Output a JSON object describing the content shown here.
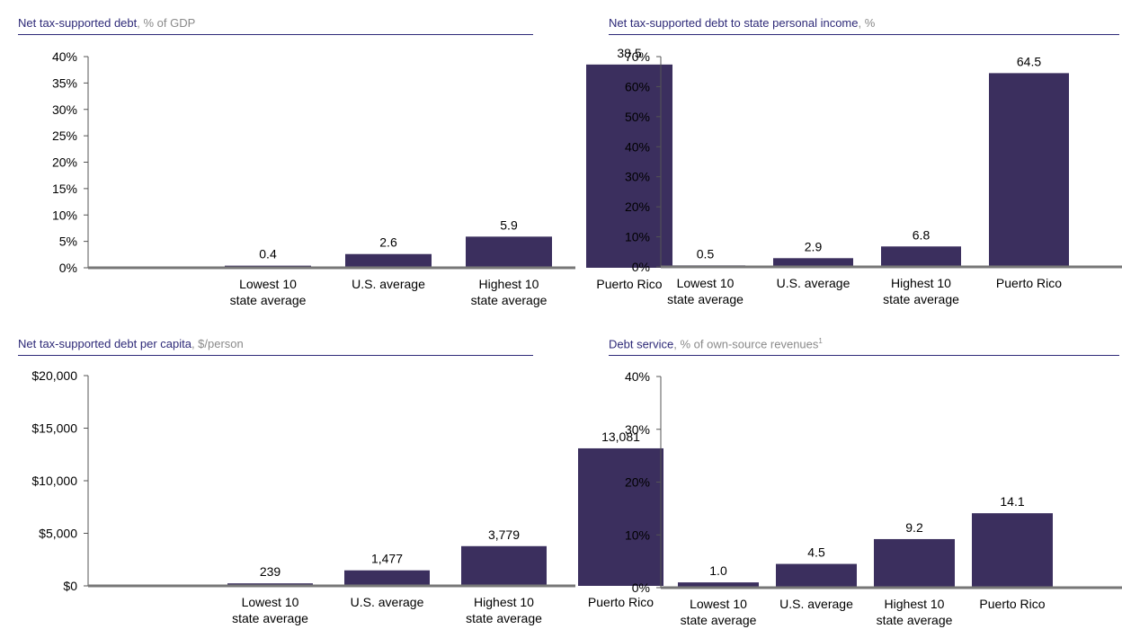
{
  "chart_data": [
    {
      "type": "bar",
      "title": "Net tax-supported debt",
      "subtitle": ", % of GDP",
      "categories": [
        "Lowest 10\nstate average",
        "U.S. average",
        "Highest 10\nstate average",
        "Puerto Rico"
      ],
      "values": [
        0.4,
        2.6,
        5.9,
        38.5
      ],
      "value_labels": [
        "0.4",
        "2.6",
        "5.9",
        "38.5"
      ],
      "yticks": [
        "0%",
        "5%",
        "10%",
        "15%",
        "20%",
        "25%",
        "30%",
        "35%",
        "40%"
      ],
      "ylim": [
        0,
        40
      ],
      "bar_color": "#3b2f5e",
      "grid": false
    },
    {
      "type": "bar",
      "title": "Net tax-supported debt to state personal income",
      "subtitle": ", %",
      "categories": [
        "Lowest 10\nstate average",
        "U.S. average",
        "Highest 10\nstate average",
        "Puerto Rico"
      ],
      "values": [
        0.5,
        2.9,
        6.8,
        64.5
      ],
      "value_labels": [
        "0.5",
        "2.9",
        "6.8",
        "64.5"
      ],
      "yticks": [
        "0%",
        "10%",
        "20%",
        "30%",
        "40%",
        "50%",
        "60%",
        "70%"
      ],
      "ylim": [
        0,
        70
      ],
      "bar_color": "#3b2f5e",
      "grid": false
    },
    {
      "type": "bar",
      "title": "Net tax-supported debt per capita",
      "subtitle": ", $/person",
      "categories": [
        "Lowest 10\nstate average",
        "U.S. average",
        "Highest 10\nstate average",
        "Puerto Rico"
      ],
      "values": [
        239,
        1477,
        3779,
        13081
      ],
      "value_labels": [
        "239",
        "1,477",
        "3,779",
        "13,081"
      ],
      "yticks": [
        "$0",
        "$5,000",
        "$10,000",
        "$15,000",
        "$20,000"
      ],
      "ylim": [
        0,
        20000
      ],
      "bar_color": "#3b2f5e",
      "grid": false
    },
    {
      "type": "bar",
      "title": "Debt service",
      "subtitle": ", % of own-source revenues",
      "footnote": "1",
      "categories": [
        "Lowest 10\nstate average",
        "U.S. average",
        "Highest 10\nstate average",
        "Puerto Rico"
      ],
      "values": [
        1.0,
        4.5,
        9.2,
        14.1
      ],
      "value_labels": [
        "1.0",
        "4.5",
        "9.2",
        "14.1"
      ],
      "yticks": [
        "0%",
        "10%",
        "20%",
        "30%",
        "40%"
      ],
      "ylim": [
        0,
        40
      ],
      "bar_color": "#3b2f5e",
      "grid": false
    }
  ]
}
